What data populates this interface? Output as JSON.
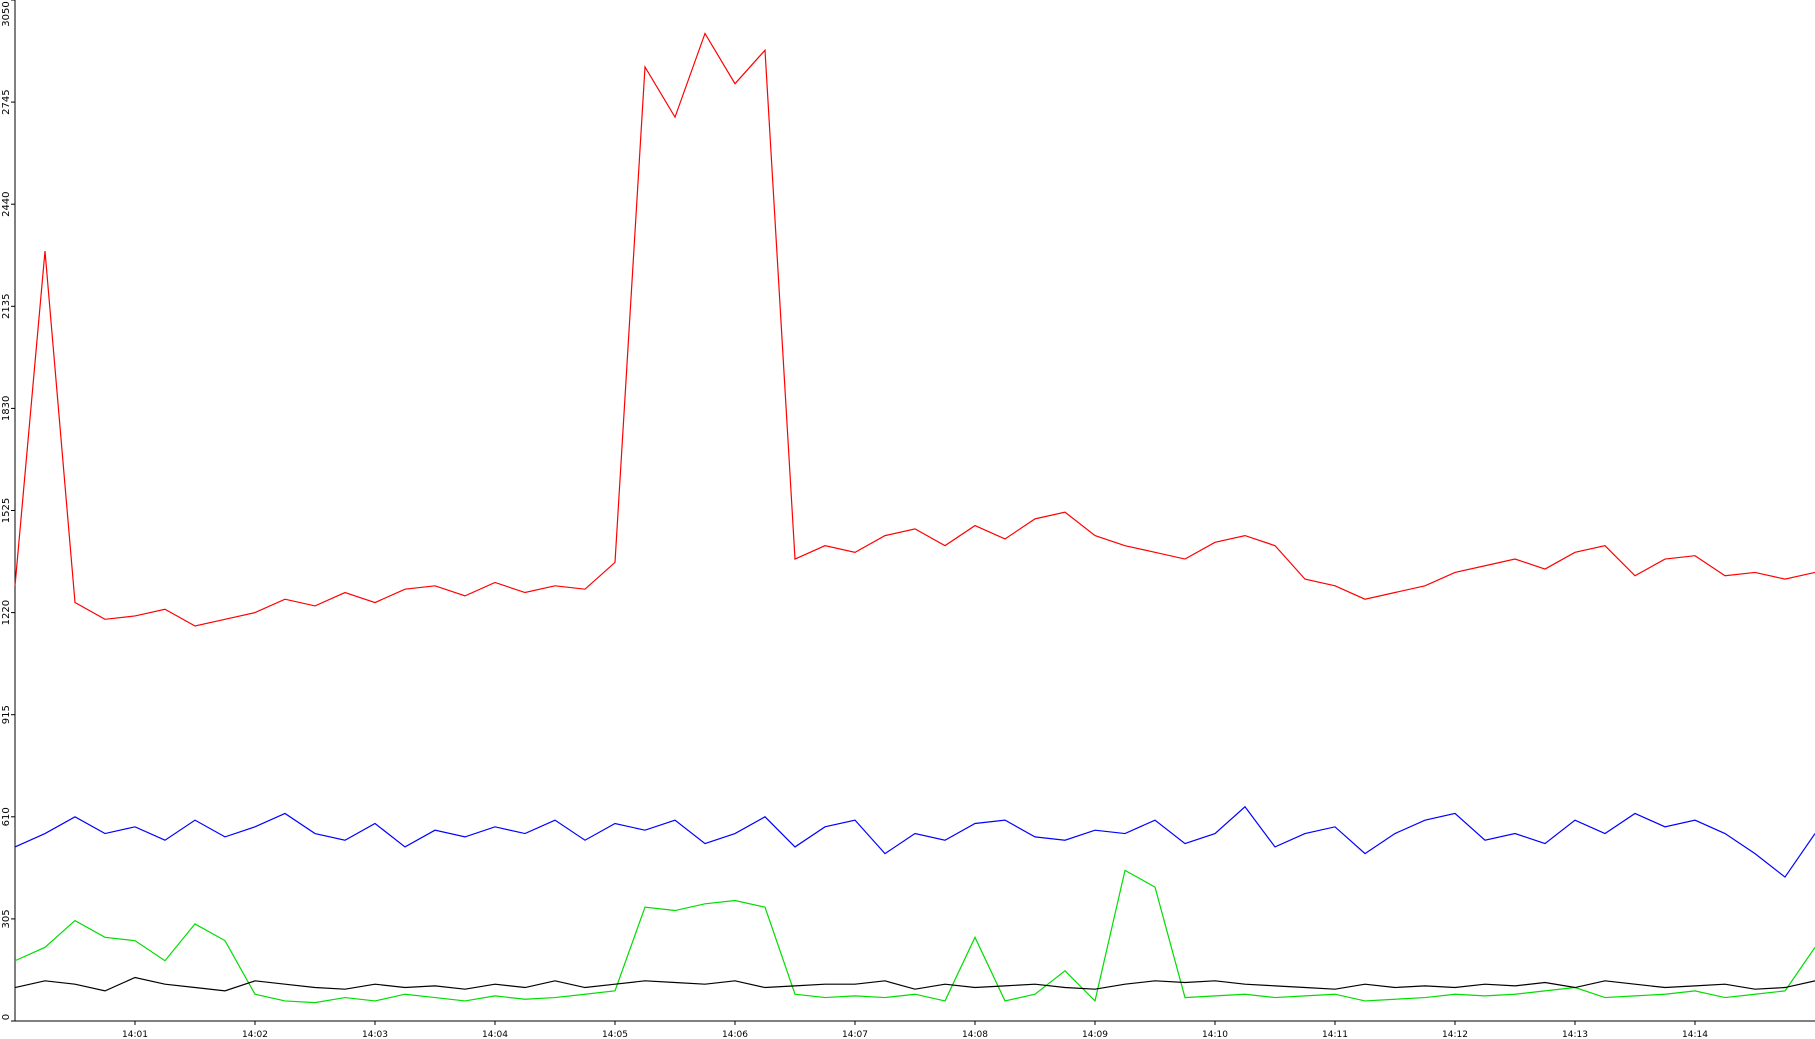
{
  "chart_data": {
    "type": "line",
    "x": [
      0,
      0.25,
      0.5,
      0.75,
      1,
      1.25,
      1.5,
      1.75,
      2,
      2.25,
      2.5,
      2.75,
      3,
      3.25,
      3.5,
      3.75,
      4,
      4.25,
      4.5,
      4.75,
      5,
      5.25,
      5.5,
      5.75,
      6,
      6.25,
      6.5,
      6.75,
      7,
      7.25,
      7.5,
      7.75,
      8,
      8.25,
      8.5,
      8.75,
      9,
      9.25,
      9.5,
      9.75,
      10,
      10.25,
      10.5,
      10.75,
      11,
      11.25,
      11.5,
      11.75,
      12,
      12.25,
      12.5,
      12.75,
      13,
      13.25,
      13.5,
      13.75,
      14,
      14.25,
      14.5,
      14.75,
      15
    ],
    "series": [
      {
        "color": "#ff0000",
        "values": [
          1300,
          2300,
          1250,
          1200,
          1210,
          1230,
          1180,
          1200,
          1220,
          1260,
          1240,
          1280,
          1250,
          1290,
          1300,
          1270,
          1310,
          1280,
          1300,
          1290,
          1370,
          2850,
          2700,
          2950,
          2800,
          2900,
          1380,
          1420,
          1400,
          1450,
          1470,
          1420,
          1480,
          1440,
          1500,
          1520,
          1450,
          1420,
          1400,
          1380,
          1430,
          1450,
          1420,
          1320,
          1300,
          1260,
          1280,
          1300,
          1340,
          1360,
          1380,
          1350,
          1400,
          1420,
          1330,
          1380,
          1390,
          1330,
          1340,
          1320,
          1340
        ]
      },
      {
        "color": "#0000ff",
        "values": [
          520,
          560,
          610,
          560,
          580,
          540,
          600,
          550,
          580,
          620,
          560,
          540,
          590,
          520,
          570,
          550,
          580,
          560,
          600,
          540,
          590,
          570,
          600,
          530,
          560,
          610,
          520,
          580,
          600,
          500,
          560,
          540,
          590,
          600,
          550,
          540,
          570,
          560,
          600,
          530,
          560,
          640,
          520,
          560,
          580,
          500,
          560,
          600,
          620,
          540,
          560,
          530,
          600,
          560,
          620,
          580,
          600,
          560,
          500,
          430,
          560
        ]
      },
      {
        "color": "#00dd00",
        "values": [
          180,
          220,
          300,
          250,
          240,
          180,
          290,
          240,
          80,
          60,
          55,
          70,
          60,
          80,
          70,
          60,
          75,
          65,
          70,
          80,
          90,
          340,
          330,
          350,
          360,
          340,
          80,
          70,
          75,
          70,
          80,
          60,
          250,
          60,
          80,
          150,
          60,
          450,
          400,
          70,
          75,
          80,
          70,
          75,
          80,
          60,
          65,
          70,
          80,
          75,
          80,
          90,
          100,
          70,
          75,
          80,
          90,
          70,
          80,
          90,
          220
        ]
      },
      {
        "color": "#000000",
        "values": [
          100,
          120,
          110,
          90,
          130,
          110,
          100,
          90,
          120,
          110,
          100,
          95,
          110,
          100,
          105,
          95,
          110,
          100,
          120,
          100,
          110,
          120,
          115,
          110,
          120,
          100,
          105,
          110,
          110,
          120,
          95,
          110,
          100,
          105,
          110,
          100,
          95,
          110,
          120,
          115,
          120,
          110,
          105,
          100,
          95,
          110,
          100,
          105,
          100,
          110,
          105,
          115,
          100,
          120,
          110,
          100,
          105,
          110,
          95,
          100,
          120
        ]
      }
    ],
    "xlim": [
      0,
      15
    ],
    "xticks": [
      {
        "value": 1,
        "label": "14:01"
      },
      {
        "value": 2,
        "label": "14:02"
      },
      {
        "value": 3,
        "label": "14:03"
      },
      {
        "value": 4,
        "label": "14:04"
      },
      {
        "value": 5,
        "label": "14:05"
      },
      {
        "value": 6,
        "label": "14:06"
      },
      {
        "value": 7,
        "label": "14:07"
      },
      {
        "value": 8,
        "label": "14:08"
      },
      {
        "value": 9,
        "label": "14:09"
      },
      {
        "value": 10,
        "label": "14:10"
      },
      {
        "value": 11,
        "label": "14:11"
      },
      {
        "value": 12,
        "label": "14:12"
      },
      {
        "value": 13,
        "label": "14:13"
      },
      {
        "value": 14,
        "label": "14:14"
      }
    ],
    "ylim": [
      0,
      3050
    ],
    "yticks": [
      0,
      305,
      610,
      915,
      1220,
      1525,
      1830,
      2135,
      2440,
      2745,
      3050
    ]
  }
}
